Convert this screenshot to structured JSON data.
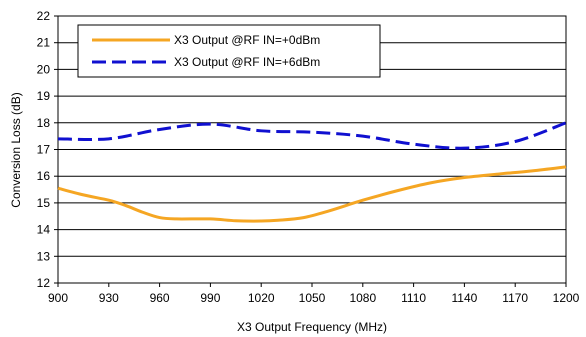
{
  "chart_data": {
    "type": "line",
    "xlabel": "X3 Output Frequency (MHz)",
    "ylabel": "Conversion Loss (dB)",
    "xlim": [
      900,
      1200
    ],
    "ylim": [
      12,
      22
    ],
    "x_ticks": [
      "900",
      "930",
      "960",
      "990",
      "1020",
      "1050",
      "1080",
      "1110",
      "1140",
      "1170",
      "1200"
    ],
    "y_ticks": [
      "12",
      "13",
      "14",
      "15",
      "16",
      "17",
      "18",
      "19",
      "20",
      "21",
      "22"
    ],
    "grid": "horizontal",
    "legend_position": "top-left",
    "series": [
      {
        "name": "X3 Output @RF IN=+0dBm",
        "color": "#f5a623",
        "style": "solid",
        "x": [
          900,
          915,
          930,
          940,
          950,
          960,
          970,
          990,
          1005,
          1020,
          1030,
          1045,
          1060,
          1080,
          1100,
          1120,
          1140,
          1160,
          1180,
          1200
        ],
        "y": [
          15.55,
          15.3,
          15.1,
          14.9,
          14.65,
          14.45,
          14.4,
          14.4,
          14.33,
          14.32,
          14.35,
          14.45,
          14.7,
          15.1,
          15.45,
          15.75,
          15.95,
          16.08,
          16.2,
          16.35
        ]
      },
      {
        "name": "X3 Output @RF IN=+6dBm",
        "color": "#1010d0",
        "style": "dashed",
        "x": [
          900,
          930,
          960,
          990,
          1020,
          1050,
          1080,
          1110,
          1140,
          1170,
          1200
        ],
        "y": [
          17.4,
          17.4,
          17.75,
          17.95,
          17.7,
          17.65,
          17.5,
          17.2,
          17.05,
          17.3,
          18.0
        ]
      }
    ]
  }
}
